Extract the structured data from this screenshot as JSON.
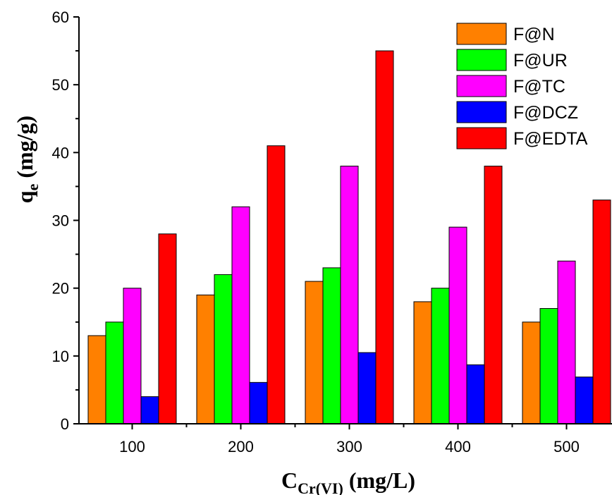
{
  "chart_data": {
    "type": "bar",
    "categories": [
      "100",
      "200",
      "300",
      "400",
      "500"
    ],
    "series": [
      {
        "name": "F@N",
        "color": "#ff8000",
        "values": [
          13,
          19,
          21,
          18,
          15
        ]
      },
      {
        "name": "F@UR",
        "color": "#00ff00",
        "values": [
          15,
          22,
          23,
          20,
          17
        ]
      },
      {
        "name": "F@TC",
        "color": "#ff00ff",
        "values": [
          20,
          32,
          38,
          29,
          24
        ]
      },
      {
        "name": "F@DCZ",
        "color": "#0000ff",
        "values": [
          4,
          6.1,
          10.5,
          8.7,
          6.9
        ]
      },
      {
        "name": "F@EDTA",
        "color": "#ff0000",
        "values": [
          28,
          41,
          55,
          38,
          33
        ]
      }
    ],
    "xlabel": {
      "main": "C",
      "sub": "Cr(VI)",
      "unit": " (mg/L)"
    },
    "ylabel": {
      "main": "q",
      "sub": "e",
      "unit": " (mg/g)"
    },
    "ylim": [
      0,
      60
    ],
    "yticks": [
      0,
      10,
      20,
      30,
      40,
      50,
      60
    ],
    "grid": false,
    "legend_position": "top-right"
  }
}
